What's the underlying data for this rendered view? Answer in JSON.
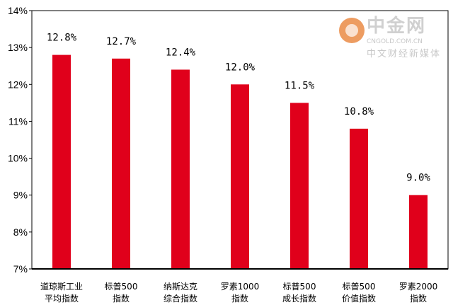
{
  "chart_data": {
    "type": "bar",
    "categories": [
      [
        "道琼斯工业",
        "平均指数"
      ],
      [
        "标普500",
        "指数"
      ],
      [
        "纳斯达克",
        "综合指数"
      ],
      [
        "罗素1000",
        "指数"
      ],
      [
        "标普500",
        "成长指数"
      ],
      [
        "标普500",
        "价值指数"
      ],
      [
        "罗素2000",
        "指数"
      ]
    ],
    "values": [
      12.8,
      12.7,
      12.4,
      12.0,
      11.5,
      10.8,
      9.0
    ],
    "data_labels": [
      "12.8%",
      "12.7%",
      "12.4%",
      "12.0%",
      "11.5%",
      "10.8%",
      "9.0%"
    ],
    "ylim": [
      7,
      14
    ],
    "yticks": [
      "7%",
      "8%",
      "9%",
      "10%",
      "11%",
      "12%",
      "13%",
      "14%"
    ],
    "title": "",
    "xlabel": "",
    "ylabel": "",
    "grid": false,
    "bar_color": "#e0001b"
  },
  "watermark": {
    "name": "中金网",
    "url": "CNGOLD.COM.CN",
    "tagline": "中文财经新媒体"
  }
}
